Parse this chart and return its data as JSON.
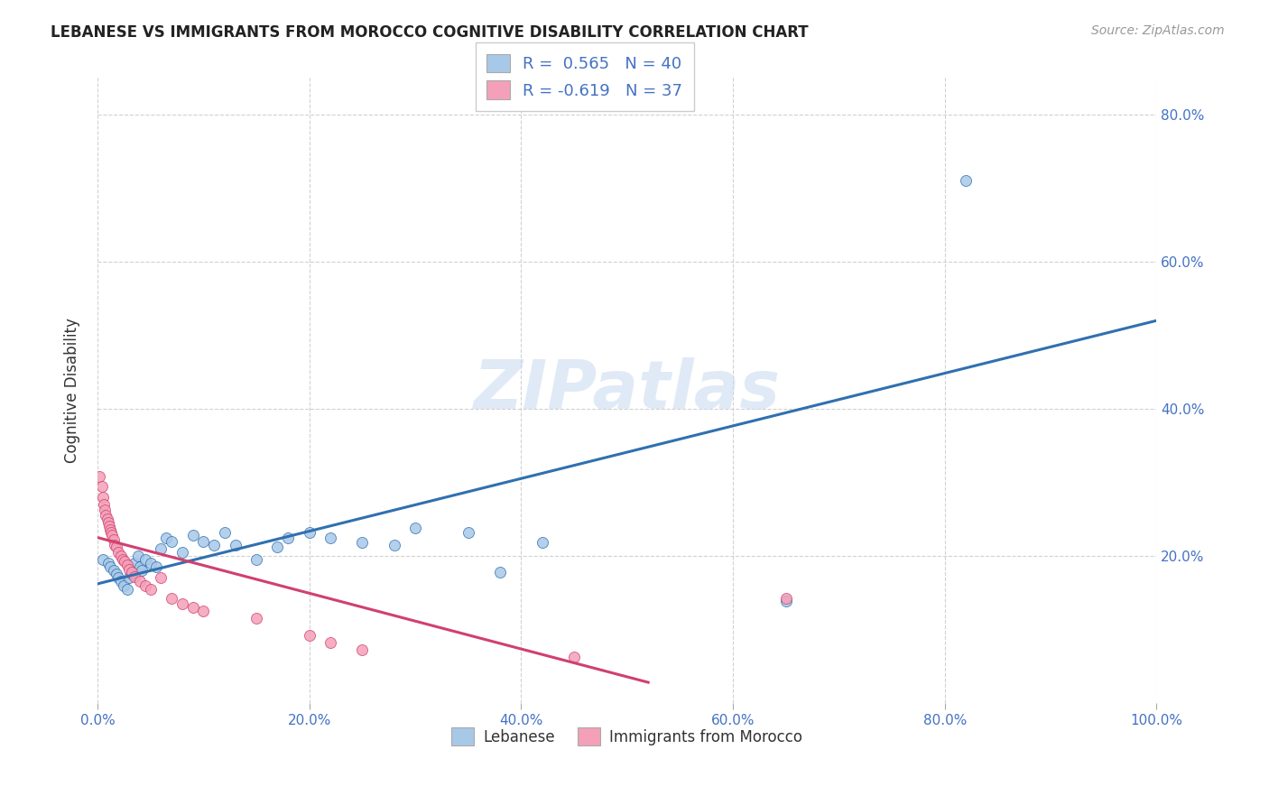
{
  "title": "LEBANESE VS IMMIGRANTS FROM MOROCCO COGNITIVE DISABILITY CORRELATION CHART",
  "source": "Source: ZipAtlas.com",
  "xlabel": "",
  "ylabel": "Cognitive Disability",
  "watermark": "ZIPatlas",
  "xlim": [
    0.0,
    1.0
  ],
  "ylim": [
    0.0,
    0.85
  ],
  "xticks": [
    0.0,
    0.2,
    0.4,
    0.6,
    0.8,
    1.0
  ],
  "xtick_labels": [
    "0.0%",
    "20.0%",
    "40.0%",
    "60.0%",
    "80.0%",
    "100.0%"
  ],
  "ytick_positions": [
    0.2,
    0.4,
    0.6,
    0.8
  ],
  "ytick_labels": [
    "20.0%",
    "40.0%",
    "60.0%",
    "80.0%"
  ],
  "legend_r1": "R =  0.565",
  "legend_n1": "N = 40",
  "legend_r2": "R = -0.619",
  "legend_n2": "N = 37",
  "blue_color": "#a8c8e8",
  "pink_color": "#f4a0b8",
  "blue_line_color": "#3070b0",
  "pink_line_color": "#d04070",
  "blue_scatter": [
    [
      0.005,
      0.195
    ],
    [
      0.01,
      0.19
    ],
    [
      0.012,
      0.185
    ],
    [
      0.015,
      0.18
    ],
    [
      0.018,
      0.175
    ],
    [
      0.02,
      0.17
    ],
    [
      0.022,
      0.165
    ],
    [
      0.025,
      0.16
    ],
    [
      0.028,
      0.155
    ],
    [
      0.03,
      0.17
    ],
    [
      0.032,
      0.175
    ],
    [
      0.035,
      0.19
    ],
    [
      0.038,
      0.2
    ],
    [
      0.04,
      0.185
    ],
    [
      0.042,
      0.18
    ],
    [
      0.045,
      0.195
    ],
    [
      0.05,
      0.19
    ],
    [
      0.055,
      0.185
    ],
    [
      0.06,
      0.21
    ],
    [
      0.065,
      0.225
    ],
    [
      0.07,
      0.22
    ],
    [
      0.08,
      0.205
    ],
    [
      0.09,
      0.228
    ],
    [
      0.1,
      0.22
    ],
    [
      0.11,
      0.215
    ],
    [
      0.12,
      0.232
    ],
    [
      0.13,
      0.215
    ],
    [
      0.15,
      0.195
    ],
    [
      0.17,
      0.212
    ],
    [
      0.18,
      0.225
    ],
    [
      0.2,
      0.232
    ],
    [
      0.22,
      0.225
    ],
    [
      0.25,
      0.218
    ],
    [
      0.28,
      0.215
    ],
    [
      0.3,
      0.238
    ],
    [
      0.35,
      0.232
    ],
    [
      0.38,
      0.178
    ],
    [
      0.42,
      0.218
    ],
    [
      0.65,
      0.138
    ],
    [
      0.82,
      0.71
    ]
  ],
  "pink_scatter": [
    [
      0.002,
      0.308
    ],
    [
      0.004,
      0.295
    ],
    [
      0.005,
      0.28
    ],
    [
      0.006,
      0.27
    ],
    [
      0.007,
      0.262
    ],
    [
      0.008,
      0.255
    ],
    [
      0.009,
      0.25
    ],
    [
      0.01,
      0.245
    ],
    [
      0.011,
      0.24
    ],
    [
      0.012,
      0.235
    ],
    [
      0.013,
      0.232
    ],
    [
      0.014,
      0.228
    ],
    [
      0.015,
      0.222
    ],
    [
      0.016,
      0.215
    ],
    [
      0.018,
      0.212
    ],
    [
      0.02,
      0.205
    ],
    [
      0.022,
      0.2
    ],
    [
      0.024,
      0.195
    ],
    [
      0.026,
      0.192
    ],
    [
      0.028,
      0.188
    ],
    [
      0.03,
      0.182
    ],
    [
      0.032,
      0.178
    ],
    [
      0.035,
      0.172
    ],
    [
      0.04,
      0.165
    ],
    [
      0.045,
      0.16
    ],
    [
      0.05,
      0.155
    ],
    [
      0.06,
      0.17
    ],
    [
      0.07,
      0.142
    ],
    [
      0.08,
      0.135
    ],
    [
      0.09,
      0.13
    ],
    [
      0.1,
      0.125
    ],
    [
      0.15,
      0.115
    ],
    [
      0.2,
      0.092
    ],
    [
      0.22,
      0.082
    ],
    [
      0.25,
      0.072
    ],
    [
      0.45,
      0.062
    ],
    [
      0.65,
      0.142
    ]
  ],
  "blue_trendline": [
    [
      0.0,
      0.162
    ],
    [
      1.0,
      0.52
    ]
  ],
  "pink_trendline": [
    [
      0.0,
      0.225
    ],
    [
      0.52,
      0.028
    ]
  ],
  "background_color": "#ffffff",
  "grid_color": "#cccccc",
  "title_color": "#222222",
  "axis_color": "#4472c4",
  "marker_size": 75
}
